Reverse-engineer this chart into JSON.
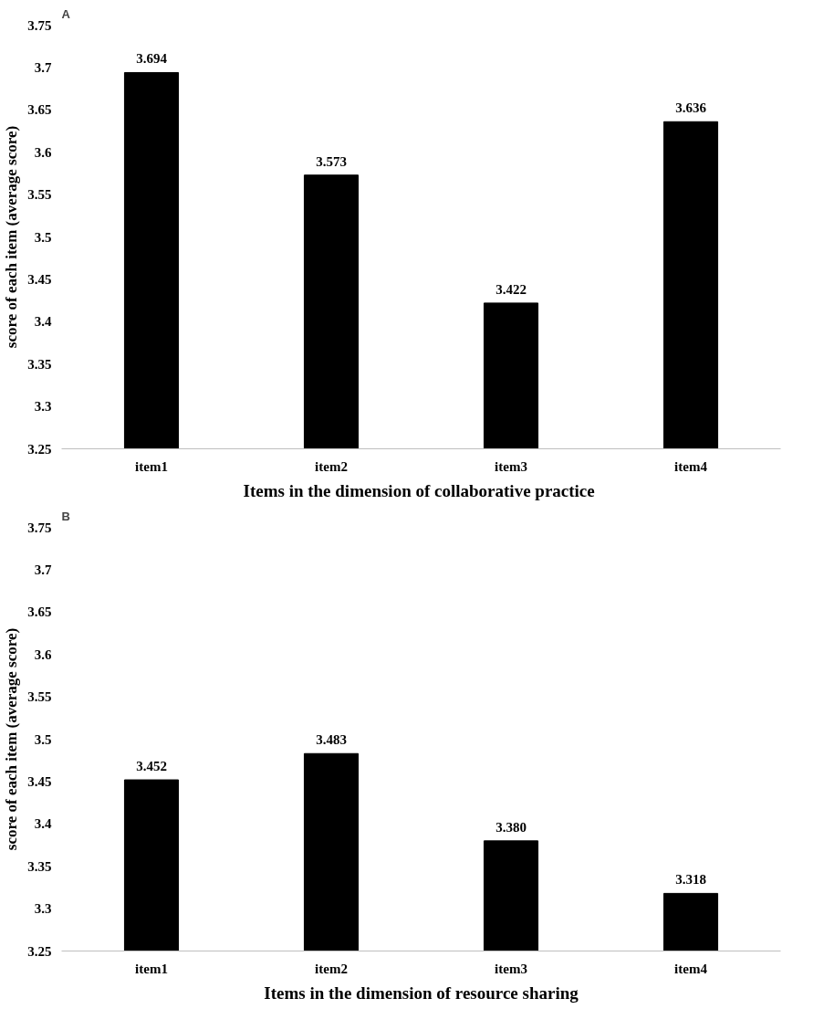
{
  "chart_data": [
    {
      "type": "bar",
      "title": "A",
      "categories": [
        "item1",
        "item2",
        "item3",
        "item4"
      ],
      "values": [
        3.694,
        3.573,
        3.422,
        3.636
      ],
      "color": "#000000",
      "xlabel": "Items in the dimension of collaborative  practice",
      "ylabel": "score of each item (average score)",
      "ylim": [
        3.25,
        3.75
      ],
      "yticks": [
        3.25,
        3.3,
        3.35,
        3.4,
        3.45,
        3.5,
        3.55,
        3.6,
        3.65,
        3.7,
        3.75
      ],
      "data_labels": true,
      "grid": false
    },
    {
      "type": "bar",
      "title": "B",
      "categories": [
        "item1",
        "item2",
        "item3",
        "item4"
      ],
      "values": [
        3.452,
        3.483,
        3.38,
        3.318
      ],
      "value_labels": [
        "3.452",
        "3.483",
        "3.380",
        "3.318"
      ],
      "color": "#000000",
      "xlabel": "Items in the dimension of resource sharing",
      "ylabel": "score of each item (average score)",
      "ylim": [
        3.25,
        3.75
      ],
      "yticks": [
        3.25,
        3.3,
        3.35,
        3.4,
        3.45,
        3.5,
        3.55,
        3.6,
        3.65,
        3.7,
        3.75
      ],
      "grid": false
    }
  ]
}
